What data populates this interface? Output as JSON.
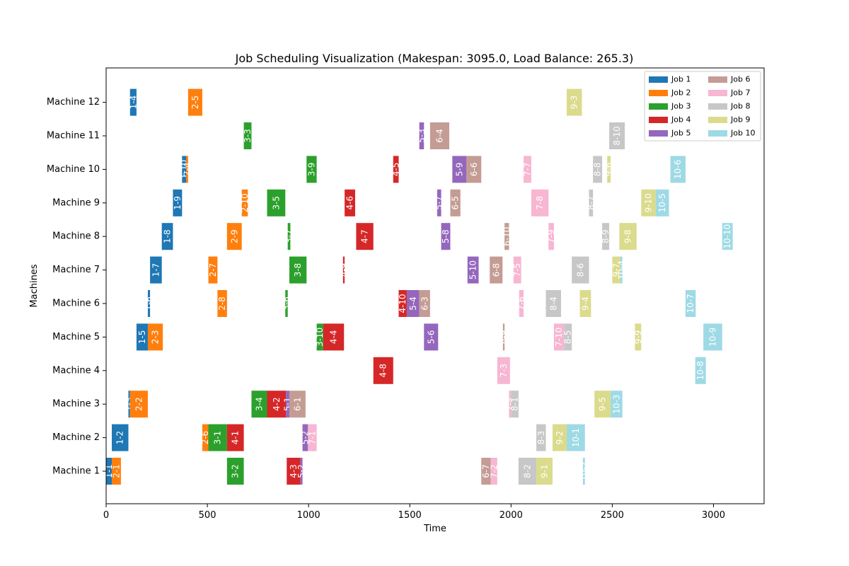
{
  "chart_data": {
    "type": "gantt",
    "title": "Job Scheduling Visualization (Makespan: 3095.0, Load Balance: 265.3)",
    "xlabel": "Time",
    "ylabel": "Machines",
    "xlim": [
      0,
      3250
    ],
    "x_ticks": [
      0,
      500,
      1000,
      1500,
      2000,
      2500,
      3000
    ],
    "machines": [
      "Machine 1",
      "Machine 2",
      "Machine 3",
      "Machine 4",
      "Machine 5",
      "Machine 6",
      "Machine 7",
      "Machine 8",
      "Machine 9",
      "Machine 10",
      "Machine 11",
      "Machine 12"
    ],
    "legend": {
      "placement": "top-right",
      "entries": [
        {
          "name": "Job 1",
          "color": "#1f77b4"
        },
        {
          "name": "Job 2",
          "color": "#ff7f0e"
        },
        {
          "name": "Job 3",
          "color": "#2ca02c"
        },
        {
          "name": "Job 4",
          "color": "#d62728"
        },
        {
          "name": "Job 5",
          "color": "#9467bd"
        },
        {
          "name": "Job 6",
          "color": "#c49c94"
        },
        {
          "name": "Job 7",
          "color": "#f7b6d2"
        },
        {
          "name": "Job 8",
          "color": "#c7c7c7"
        },
        {
          "name": "Job 9",
          "color": "#dbdb8d"
        },
        {
          "name": "Job 10",
          "color": "#9edae5"
        }
      ]
    },
    "tasks": [
      {
        "label": "1-1",
        "job": 1,
        "machine": 1,
        "start": 0,
        "end": 28
      },
      {
        "label": "2-1",
        "job": 2,
        "machine": 1,
        "start": 28,
        "end": 73
      },
      {
        "label": "3-2",
        "job": 3,
        "machine": 1,
        "start": 597,
        "end": 680
      },
      {
        "label": "4-3",
        "job": 4,
        "machine": 1,
        "start": 892,
        "end": 960
      },
      {
        "label": "5-2",
        "job": 5,
        "machine": 1,
        "start": 960,
        "end": 970
      },
      {
        "label": "6-7",
        "job": 6,
        "machine": 1,
        "start": 1853,
        "end": 1900
      },
      {
        "label": "7-2",
        "job": 7,
        "machine": 1,
        "start": 1900,
        "end": 1932
      },
      {
        "label": "8-2",
        "job": 8,
        "machine": 1,
        "start": 2037,
        "end": 2125
      },
      {
        "label": "9-1",
        "job": 9,
        "machine": 1,
        "start": 2125,
        "end": 2205
      },
      {
        "label": "10-2",
        "job": 10,
        "machine": 1,
        "start": 2355,
        "end": 2365
      },
      {
        "label": "1-2",
        "job": 1,
        "machine": 2,
        "start": 28,
        "end": 110
      },
      {
        "label": "2-6",
        "job": 2,
        "machine": 2,
        "start": 475,
        "end": 505
      },
      {
        "label": "3-1",
        "job": 3,
        "machine": 2,
        "start": 505,
        "end": 597
      },
      {
        "label": "4-1",
        "job": 4,
        "machine": 2,
        "start": 597,
        "end": 680
      },
      {
        "label": "5-2",
        "job": 5,
        "machine": 2,
        "start": 970,
        "end": 997
      },
      {
        "label": "7-1",
        "job": 7,
        "machine": 2,
        "start": 997,
        "end": 1040
      },
      {
        "label": "8-3",
        "job": 8,
        "machine": 2,
        "start": 2125,
        "end": 2172
      },
      {
        "label": "9-2",
        "job": 9,
        "machine": 2,
        "start": 2205,
        "end": 2275
      },
      {
        "label": "10-1",
        "job": 10,
        "machine": 2,
        "start": 2275,
        "end": 2365
      },
      {
        "label": "1-3",
        "job": 1,
        "machine": 3,
        "start": 110,
        "end": 118
      },
      {
        "label": "2-2",
        "job": 2,
        "machine": 3,
        "start": 118,
        "end": 206
      },
      {
        "label": "3-4",
        "job": 3,
        "machine": 3,
        "start": 718,
        "end": 795
      },
      {
        "label": "4-2",
        "job": 4,
        "machine": 3,
        "start": 795,
        "end": 888
      },
      {
        "label": "5-1",
        "job": 5,
        "machine": 3,
        "start": 888,
        "end": 905
      },
      {
        "label": "6-1",
        "job": 6,
        "machine": 3,
        "start": 905,
        "end": 985
      },
      {
        "label": "7-4",
        "job": 7,
        "machine": 3,
        "start": 1990,
        "end": 2000
      },
      {
        "label": "8-1",
        "job": 8,
        "machine": 3,
        "start": 2000,
        "end": 2037
      },
      {
        "label": "9-5",
        "job": 9,
        "machine": 3,
        "start": 2412,
        "end": 2492
      },
      {
        "label": "10-3",
        "job": 10,
        "machine": 3,
        "start": 2492,
        "end": 2550
      },
      {
        "label": "4-8",
        "job": 4,
        "machine": 4,
        "start": 1320,
        "end": 1418
      },
      {
        "label": "7-3",
        "job": 7,
        "machine": 4,
        "start": 1932,
        "end": 1995
      },
      {
        "label": "10-8",
        "job": 10,
        "machine": 4,
        "start": 2910,
        "end": 2962
      },
      {
        "label": "1-5",
        "job": 1,
        "machine": 5,
        "start": 150,
        "end": 206
      },
      {
        "label": "2-3",
        "job": 2,
        "machine": 5,
        "start": 206,
        "end": 280
      },
      {
        "label": "3-10",
        "job": 3,
        "machine": 5,
        "start": 1040,
        "end": 1072
      },
      {
        "label": "4-4",
        "job": 4,
        "machine": 5,
        "start": 1072,
        "end": 1175
      },
      {
        "label": "5-6",
        "job": 5,
        "machine": 5,
        "start": 1570,
        "end": 1640
      },
      {
        "label": "6-9",
        "job": 6,
        "machine": 5,
        "start": 1960,
        "end": 1968
      },
      {
        "label": "7-10",
        "job": 7,
        "machine": 5,
        "start": 2212,
        "end": 2262
      },
      {
        "label": "8-5",
        "job": 8,
        "machine": 5,
        "start": 2262,
        "end": 2300
      },
      {
        "label": "9-9",
        "job": 9,
        "machine": 5,
        "start": 2612,
        "end": 2643
      },
      {
        "label": "10-9",
        "job": 10,
        "machine": 5,
        "start": 2950,
        "end": 3043
      },
      {
        "label": "1-6",
        "job": 1,
        "machine": 6,
        "start": 206,
        "end": 217
      },
      {
        "label": "2-8",
        "job": 2,
        "machine": 6,
        "start": 550,
        "end": 597
      },
      {
        "label": "3-6",
        "job": 3,
        "machine": 6,
        "start": 885,
        "end": 897
      },
      {
        "label": "4-10",
        "job": 4,
        "machine": 6,
        "start": 1445,
        "end": 1485
      },
      {
        "label": "5-4",
        "job": 5,
        "machine": 6,
        "start": 1485,
        "end": 1547
      },
      {
        "label": "6-3",
        "job": 6,
        "machine": 6,
        "start": 1547,
        "end": 1600
      },
      {
        "label": "7-6",
        "job": 7,
        "machine": 6,
        "start": 2040,
        "end": 2062
      },
      {
        "label": "8-4",
        "job": 8,
        "machine": 6,
        "start": 2172,
        "end": 2247
      },
      {
        "label": "9-4",
        "job": 9,
        "machine": 6,
        "start": 2340,
        "end": 2395
      },
      {
        "label": "10-7",
        "job": 10,
        "machine": 6,
        "start": 2862,
        "end": 2912
      },
      {
        "label": "1-7",
        "job": 1,
        "machine": 7,
        "start": 217,
        "end": 275
      },
      {
        "label": "2-7",
        "job": 2,
        "machine": 7,
        "start": 505,
        "end": 550
      },
      {
        "label": "3-8",
        "job": 3,
        "machine": 7,
        "start": 905,
        "end": 990
      },
      {
        "label": "4-9",
        "job": 4,
        "machine": 7,
        "start": 1170,
        "end": 1178
      },
      {
        "label": "5-10",
        "job": 5,
        "machine": 7,
        "start": 1785,
        "end": 1840
      },
      {
        "label": "6-8",
        "job": 6,
        "machine": 7,
        "start": 1895,
        "end": 1958
      },
      {
        "label": "7-5",
        "job": 7,
        "machine": 7,
        "start": 2012,
        "end": 2050
      },
      {
        "label": "8-6",
        "job": 8,
        "machine": 7,
        "start": 2300,
        "end": 2385
      },
      {
        "label": "9-7",
        "job": 9,
        "machine": 7,
        "start": 2500,
        "end": 2540
      },
      {
        "label": "10-4",
        "job": 10,
        "machine": 7,
        "start": 2540,
        "end": 2550
      },
      {
        "label": "1-8",
        "job": 1,
        "machine": 8,
        "start": 275,
        "end": 330
      },
      {
        "label": "2-9",
        "job": 2,
        "machine": 8,
        "start": 597,
        "end": 670
      },
      {
        "label": "3-7",
        "job": 3,
        "machine": 8,
        "start": 897,
        "end": 910
      },
      {
        "label": "4-7",
        "job": 4,
        "machine": 8,
        "start": 1235,
        "end": 1320
      },
      {
        "label": "5-8",
        "job": 5,
        "machine": 8,
        "start": 1655,
        "end": 1700
      },
      {
        "label": "6-10",
        "job": 6,
        "machine": 8,
        "start": 1968,
        "end": 1990
      },
      {
        "label": "7-9",
        "job": 7,
        "machine": 8,
        "start": 2185,
        "end": 2212
      },
      {
        "label": "8-9",
        "job": 8,
        "machine": 8,
        "start": 2450,
        "end": 2485
      },
      {
        "label": "9-8",
        "job": 9,
        "machine": 8,
        "start": 2535,
        "end": 2620
      },
      {
        "label": "10-10",
        "job": 10,
        "machine": 8,
        "start": 3043,
        "end": 3095
      },
      {
        "label": "1-9",
        "job": 1,
        "machine": 9,
        "start": 330,
        "end": 375
      },
      {
        "label": "2-10",
        "job": 2,
        "machine": 9,
        "start": 670,
        "end": 700
      },
      {
        "label": "3-5",
        "job": 3,
        "machine": 9,
        "start": 795,
        "end": 885
      },
      {
        "label": "4-6",
        "job": 4,
        "machine": 9,
        "start": 1178,
        "end": 1230
      },
      {
        "label": "5-7",
        "job": 5,
        "machine": 9,
        "start": 1635,
        "end": 1655
      },
      {
        "label": "6-5",
        "job": 6,
        "machine": 9,
        "start": 1700,
        "end": 1750
      },
      {
        "label": "7-8",
        "job": 7,
        "machine": 9,
        "start": 2100,
        "end": 2185
      },
      {
        "label": "8-7",
        "job": 8,
        "machine": 9,
        "start": 2385,
        "end": 2405
      },
      {
        "label": "9-10",
        "job": 9,
        "machine": 9,
        "start": 2643,
        "end": 2715
      },
      {
        "label": "10-5",
        "job": 10,
        "machine": 9,
        "start": 2715,
        "end": 2780
      },
      {
        "label": "1-10",
        "job": 1,
        "machine": 10,
        "start": 375,
        "end": 395
      },
      {
        "label": "2-4",
        "job": 2,
        "machine": 10,
        "start": 395,
        "end": 405
      },
      {
        "label": "3-9",
        "job": 3,
        "machine": 10,
        "start": 990,
        "end": 1040
      },
      {
        "label": "4-5",
        "job": 4,
        "machine": 10,
        "start": 1418,
        "end": 1445
      },
      {
        "label": "5-9",
        "job": 5,
        "machine": 10,
        "start": 1710,
        "end": 1780
      },
      {
        "label": "6-6",
        "job": 6,
        "machine": 10,
        "start": 1780,
        "end": 1853
      },
      {
        "label": "7-7",
        "job": 7,
        "machine": 10,
        "start": 2062,
        "end": 2100
      },
      {
        "label": "8-8",
        "job": 8,
        "machine": 10,
        "start": 2405,
        "end": 2450
      },
      {
        "label": "9-6",
        "job": 9,
        "machine": 10,
        "start": 2475,
        "end": 2492
      },
      {
        "label": "10-6",
        "job": 10,
        "machine": 10,
        "start": 2787,
        "end": 2862
      },
      {
        "label": "3-3",
        "job": 3,
        "machine": 11,
        "start": 680,
        "end": 718
      },
      {
        "label": "5-3",
        "job": 5,
        "machine": 11,
        "start": 1547,
        "end": 1570
      },
      {
        "label": "6-4",
        "job": 6,
        "machine": 11,
        "start": 1600,
        "end": 1695
      },
      {
        "label": "8-10",
        "job": 8,
        "machine": 11,
        "start": 2485,
        "end": 2562
      },
      {
        "label": "1-4",
        "job": 1,
        "machine": 12,
        "start": 118,
        "end": 150
      },
      {
        "label": "2-5",
        "job": 2,
        "machine": 12,
        "start": 405,
        "end": 475
      },
      {
        "label": "9-3",
        "job": 9,
        "machine": 12,
        "start": 2275,
        "end": 2350
      }
    ]
  }
}
